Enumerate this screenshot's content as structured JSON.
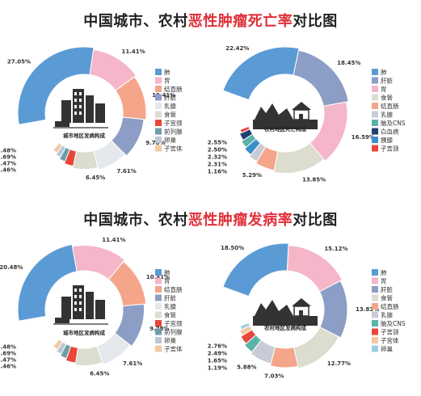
{
  "titles": {
    "top": {
      "prefix": "中国城市、农村",
      "highlight": "恶性肿瘤死亡率",
      "suffix": "对比图"
    },
    "bottom": {
      "prefix": "中国城市、农村",
      "highlight": "恶性肿瘤发病率",
      "suffix": "对比图"
    }
  },
  "chart_data": [
    {
      "type": "pie",
      "title": "城市地区发病构成",
      "categories": [
        "肺",
        "胃",
        "结直肠",
        "肝脏",
        "乳腺",
        "食管",
        "子宫颈",
        "前列腺",
        "卵巢",
        "子宫体"
      ],
      "values": [
        27.05,
        11.41,
        10.41,
        9.78,
        7.61,
        6.45,
        2.48,
        1.69,
        1.47,
        1.46
      ],
      "colors": [
        "#5b9bd5",
        "#f4b6c8",
        "#f4a58a",
        "#8c9dc6",
        "#e4e7ec",
        "#dcdccf",
        "#e8473c",
        "#6e9ea8",
        "#b9c7d8",
        "#f3c9a0"
      ],
      "legend": [
        "肺",
        "胃",
        "结直肠",
        "肝脏",
        "乳腺",
        "食管",
        "子宫颈",
        "前列腺",
        "卵巢",
        "子宫体"
      ]
    },
    {
      "type": "pie",
      "title": "农村地区死亡构成",
      "categories": [
        "肺",
        "肝脏",
        "胃",
        "食管",
        "结直肠",
        "乳腺",
        "胰腺",
        "脑及CNS",
        "白血病",
        "子宫颈"
      ],
      "values": [
        22.42,
        18.45,
        16.59,
        13.85,
        5.29,
        2.55,
        2.5,
        2.32,
        2.31,
        1.16
      ],
      "colors": [
        "#5b9bd5",
        "#8c9dc6",
        "#f4b6c8",
        "#dcdccf",
        "#f4a58a",
        "#c9ccd6",
        "#3b8fc8",
        "#5ab3a8",
        "#1f3f6e",
        "#e8473c"
      ],
      "legend": [
        "肺",
        "肝脏",
        "胃",
        "食管",
        "结直肠",
        "乳腺",
        "脑及CNS",
        "白血病",
        "胰腺",
        "子宫颈"
      ]
    },
    {
      "type": "pie",
      "title": "城市地区发病构成",
      "categories": [
        "肺",
        "胃",
        "结直肠",
        "肝脏",
        "乳腺",
        "食管",
        "子宫颈",
        "前列腺",
        "卵巢",
        "子宫体"
      ],
      "values": [
        20.48,
        11.41,
        10.41,
        9.78,
        7.61,
        6.45,
        2.48,
        1.69,
        1.47,
        1.46
      ],
      "colors": [
        "#5b9bd5",
        "#f4b6c8",
        "#f4a58a",
        "#8c9dc6",
        "#e4e7ec",
        "#dcdccf",
        "#e8473c",
        "#6e9ea8",
        "#b9c7d8",
        "#f3c9a0"
      ],
      "legend": [
        "肺",
        "胃",
        "结直肠",
        "肝脏",
        "乳腺",
        "食管",
        "子宫颈",
        "前列腺",
        "卵巢",
        "子宫体"
      ]
    },
    {
      "type": "pie",
      "title": "农村地区发病构成",
      "categories": [
        "肺",
        "胃",
        "肝脏",
        "食管",
        "结直肠",
        "乳腺",
        "脑及CNS",
        "子宫颈",
        "子宫体",
        "卵巢"
      ],
      "values": [
        18.5,
        15.12,
        13.83,
        12.77,
        7.03,
        5.88,
        2.76,
        2.49,
        1.65,
        1.19
      ],
      "colors": [
        "#5b9bd5",
        "#f4b6c8",
        "#8c9dc6",
        "#dcdccf",
        "#f4a58a",
        "#c9ccd6",
        "#5ab3a8",
        "#e8473c",
        "#f3c9a0",
        "#9ad0e0"
      ],
      "legend": [
        "肺",
        "胃",
        "肝脏",
        "食管",
        "结直肠",
        "乳腺",
        "脑及CNS",
        "子宫颈",
        "子宫体",
        "卵巢"
      ]
    }
  ]
}
